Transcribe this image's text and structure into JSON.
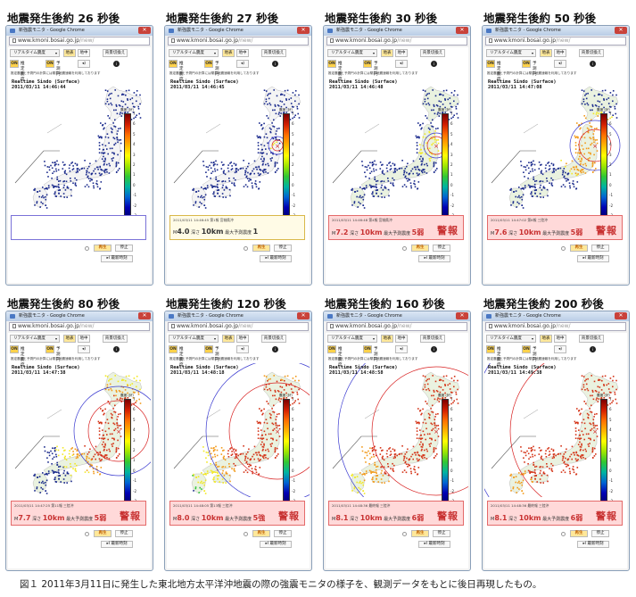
{
  "common": {
    "window_title": "新強震モニタ - Google Chrome",
    "close_glyph": "✕",
    "url_host": "www.kmoni.bosai.go.jp",
    "url_path": "/new/",
    "mode_select": "リアルタイム震度",
    "btn_chika": "地表",
    "btn_chichu": "地中",
    "btn_bg": "背景切換え",
    "info_glyph": "i",
    "on_label": "ON",
    "shindo_label": "推定震度",
    "yosoku_label": "予測円",
    "speaker_glyph": "◂)",
    "notice": "推定震度と予測円の計算には緊急地震速報を利用しております",
    "map_title_line1": "Realtime Sindo (Surface)",
    "scale_unit": "震度 (計)",
    "scale_ticks": [
      "7",
      "6",
      "5",
      "4",
      "3",
      "2",
      "1",
      "0",
      "-1",
      "-2",
      "-3"
    ],
    "play_label": "再生",
    "stop_label": "停止",
    "latest_label": "▸I 最新時刻",
    "hypocenter_marker": "×",
    "scale_colors": [
      "#7d0000",
      "#d21e00",
      "#ff6e00",
      "#ffb400",
      "#ffff00",
      "#a0e600",
      "#32c832",
      "#00b4a0",
      "#0064d2",
      "#0000b4",
      "#00006e"
    ],
    "palette": {
      "site_low": "#1a2a8c",
      "site_mid": "#2ec43a",
      "site_yellow": "#f2e826",
      "site_orange": "#f29a1a",
      "site_red": "#d43418",
      "p_wave": "#3a3ad0",
      "s_wave": "#d82020"
    }
  },
  "panels": [
    {
      "heading": "地震発生後約 26 秒後",
      "time": "2011/03/11 14:46:44",
      "alert": {
        "state": "empty"
      },
      "stage": 0
    },
    {
      "heading": "地震発生後約 27 秒後",
      "time": "2011/03/11 14:46:45",
      "alert": {
        "state": "pending",
        "head": "2011/03/11 14:46:45 第1報 宮城県沖",
        "mag": "4.0",
        "depth": "10km",
        "max_label": "最大予測震度",
        "max_value": "1"
      },
      "stage": 1
    },
    {
      "heading": "地震発生後約 30 秒後",
      "time": "2011/03/11 14:46:48",
      "alert": {
        "state": "warning",
        "head": "2011/03/11 14:46:48 第4報 宮城県沖",
        "mag": "7.2",
        "depth": "10km",
        "max_label": "最大予測震度",
        "max_value": "5弱",
        "keihou": "警報"
      },
      "stage": 2
    },
    {
      "heading": "地震発生後約 50 秒後",
      "time": "2011/03/11 14:47:08",
      "alert": {
        "state": "warning",
        "head": "2011/03/11 14:47:02 第8報 三陸沖",
        "mag": "7.6",
        "depth": "10km",
        "max_label": "最大予測震度",
        "max_value": "5弱",
        "keihou": "警報"
      },
      "stage": 3
    },
    {
      "heading": "地震発生後約 80 秒後",
      "time": "2011/03/11 14:47:38",
      "alert": {
        "state": "warning",
        "head": "2011/03/11 14:47:25 第11報 三陸沖",
        "mag": "7.7",
        "depth": "10km",
        "max_label": "最大予測震度",
        "max_value": "5弱",
        "keihou": "警報"
      },
      "stage": 4
    },
    {
      "heading": "地震発生後約 120 秒後",
      "time": "2011/03/11 14:48:18",
      "alert": {
        "state": "warning",
        "head": "2011/03/11 14:48:05 第13報 三陸沖",
        "mag": "8.0",
        "depth": "10km",
        "max_label": "最大予測震度",
        "max_value": "5強",
        "keihou": "警報"
      },
      "stage": 5
    },
    {
      "heading": "地震発生後約 160 秒後",
      "time": "2011/03/11 14:48:58",
      "alert": {
        "state": "warning",
        "head": "2011/03/11 14:48:36 最終報 三陸沖",
        "mag": "8.1",
        "depth": "10km",
        "max_label": "最大予測震度",
        "max_value": "6弱",
        "keihou": "警報"
      },
      "stage": 6
    },
    {
      "heading": "地震発生後約 200 秒後",
      "time": "2011/03/11 14:49:38",
      "alert": {
        "state": "warning",
        "head": "2011/03/11 14:48:36 最終報 三陸沖",
        "mag": "8.1",
        "depth": "10km",
        "max_label": "最大予測震度",
        "max_value": "6弱",
        "keihou": "警報"
      },
      "stage": 7
    }
  ],
  "mag_prefix": "M",
  "depth_prefix": "深さ",
  "caption": "図１ 2011年3月11日に発生した東北地方太平洋沖地震の際の強震モニタの様子を、観測データをもとに後日再現したもの。"
}
